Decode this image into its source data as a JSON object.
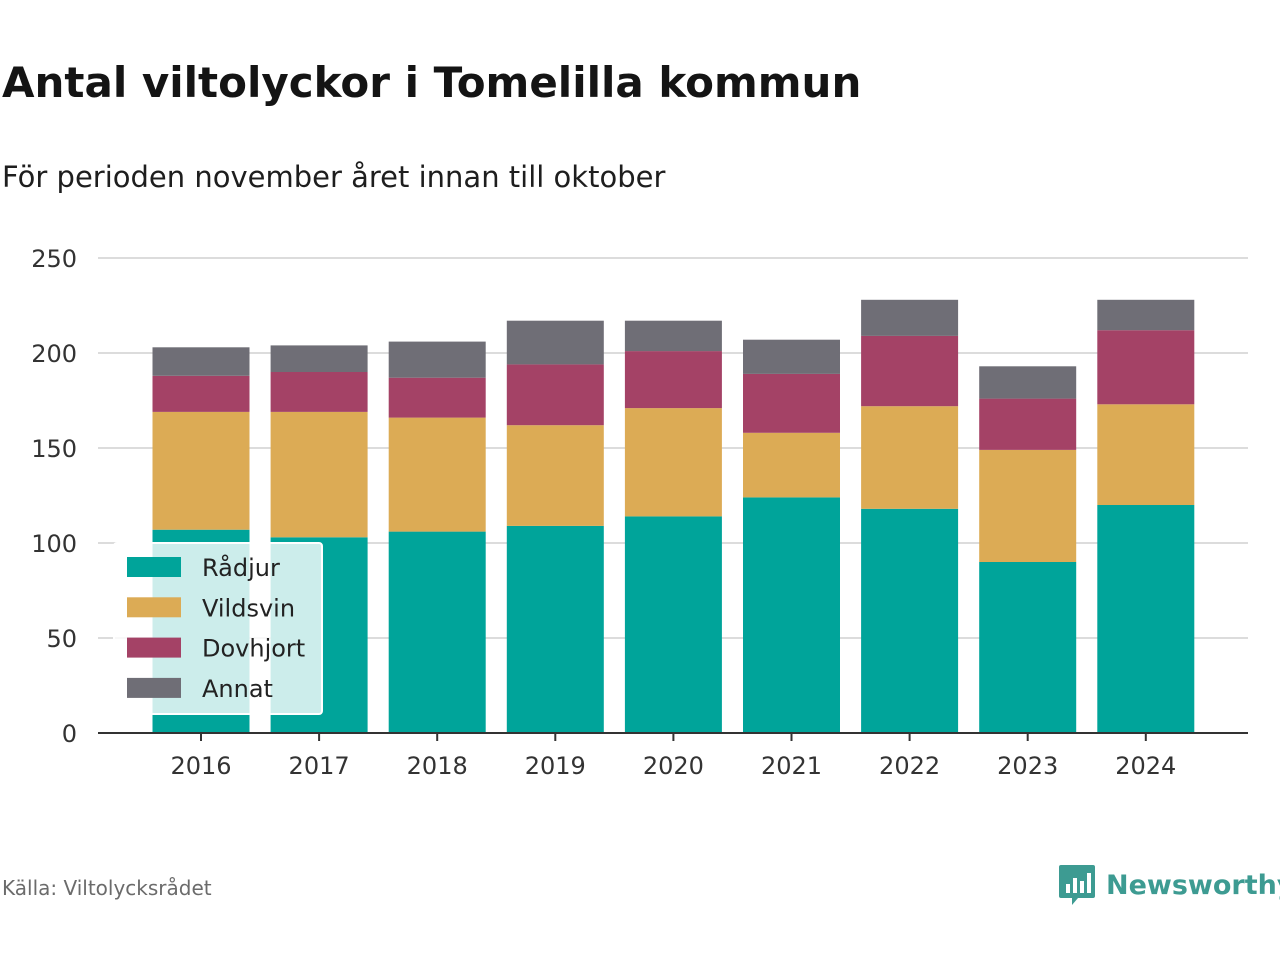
{
  "title": "Antal viltolyckor i Tomelilla kommun",
  "subtitle": "För perioden november året innan till oktober",
  "source": "Källa: Viltolycksrådet",
  "brand": {
    "name": "Newsworthy",
    "icon": "newsworthy-logo-icon",
    "color": "#3d9b92"
  },
  "chart_data": {
    "type": "bar",
    "stacked": true,
    "categories": [
      "2016",
      "2017",
      "2018",
      "2019",
      "2020",
      "2021",
      "2022",
      "2023",
      "2024"
    ],
    "series": [
      {
        "name": "Rådjur",
        "color": "#00a49a",
        "values": [
          107,
          103,
          106,
          109,
          114,
          124,
          118,
          90,
          120
        ]
      },
      {
        "name": "Vildsvin",
        "color": "#dcab55",
        "values": [
          62,
          66,
          60,
          53,
          57,
          34,
          54,
          59,
          53
        ]
      },
      {
        "name": "Dovhjort",
        "color": "#a44266",
        "values": [
          19,
          21,
          21,
          32,
          30,
          31,
          37,
          27,
          39
        ]
      },
      {
        "name": "Annat",
        "color": "#6f6e76",
        "values": [
          15,
          14,
          19,
          23,
          16,
          18,
          19,
          17,
          16
        ]
      }
    ],
    "y_ticks": [
      0,
      50,
      100,
      150,
      200,
      250
    ],
    "ylim": [
      0,
      250
    ],
    "grid": true,
    "legend_position": "bottom-left"
  }
}
